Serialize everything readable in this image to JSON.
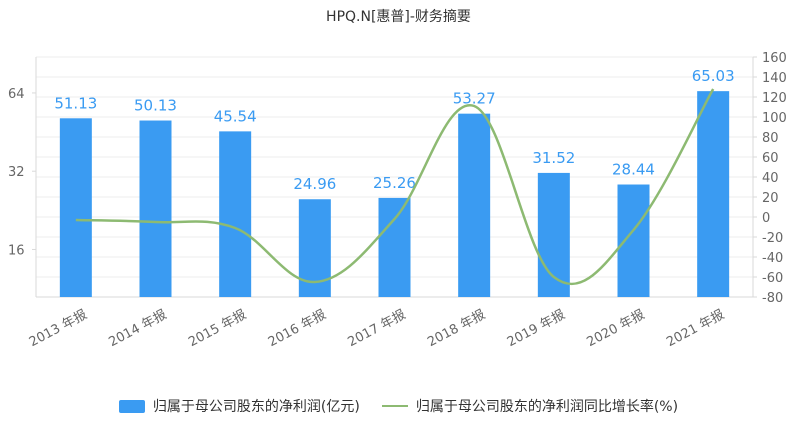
{
  "chart_data": {
    "type": "bar",
    "title": "HPQ.N[惠普]-财务摘要",
    "categories": [
      "2013 年报",
      "2014 年报",
      "2015 年报",
      "2016 年报",
      "2017 年报",
      "2018 年报",
      "2019 年报",
      "2020 年报",
      "2021 年报"
    ],
    "series": [
      {
        "name": "归属于母公司股东的净利润(亿元)",
        "type": "bar",
        "axis": "left",
        "values": [
          51.13,
          50.13,
          45.54,
          24.96,
          25.26,
          53.27,
          31.52,
          28.44,
          65.03
        ],
        "labels": [
          "51.13",
          "50.13",
          "45.54",
          "24.96",
          "25.26",
          "53.27",
          "31.52",
          "28.44",
          "65.03"
        ]
      },
      {
        "name": "归属于母公司股东的净利润同比增长率(%)",
        "type": "line",
        "axis": "right",
        "values": [
          -3,
          -5,
          -11,
          -65,
          -2,
          111,
          -60,
          -13,
          128
        ]
      }
    ],
    "left_axis": {
      "scale": "log2",
      "ticks": [
        "16",
        "32",
        "64"
      ],
      "tick_values": [
        16,
        32,
        64
      ],
      "range": [
        10.5,
        88
      ]
    },
    "right_axis": {
      "ticks": [
        "160",
        "140",
        "120",
        "100",
        "80",
        "60",
        "40",
        "20",
        "0",
        "-20",
        "-40",
        "-60",
        "-80"
      ],
      "range": [
        -80,
        160
      ]
    },
    "grid": true,
    "legend_position": "bottom",
    "colors": {
      "bar": "#3A9BF2",
      "line": "#8DBA72",
      "label": "#3A9BF2",
      "axis": "#d9d9d9"
    }
  }
}
